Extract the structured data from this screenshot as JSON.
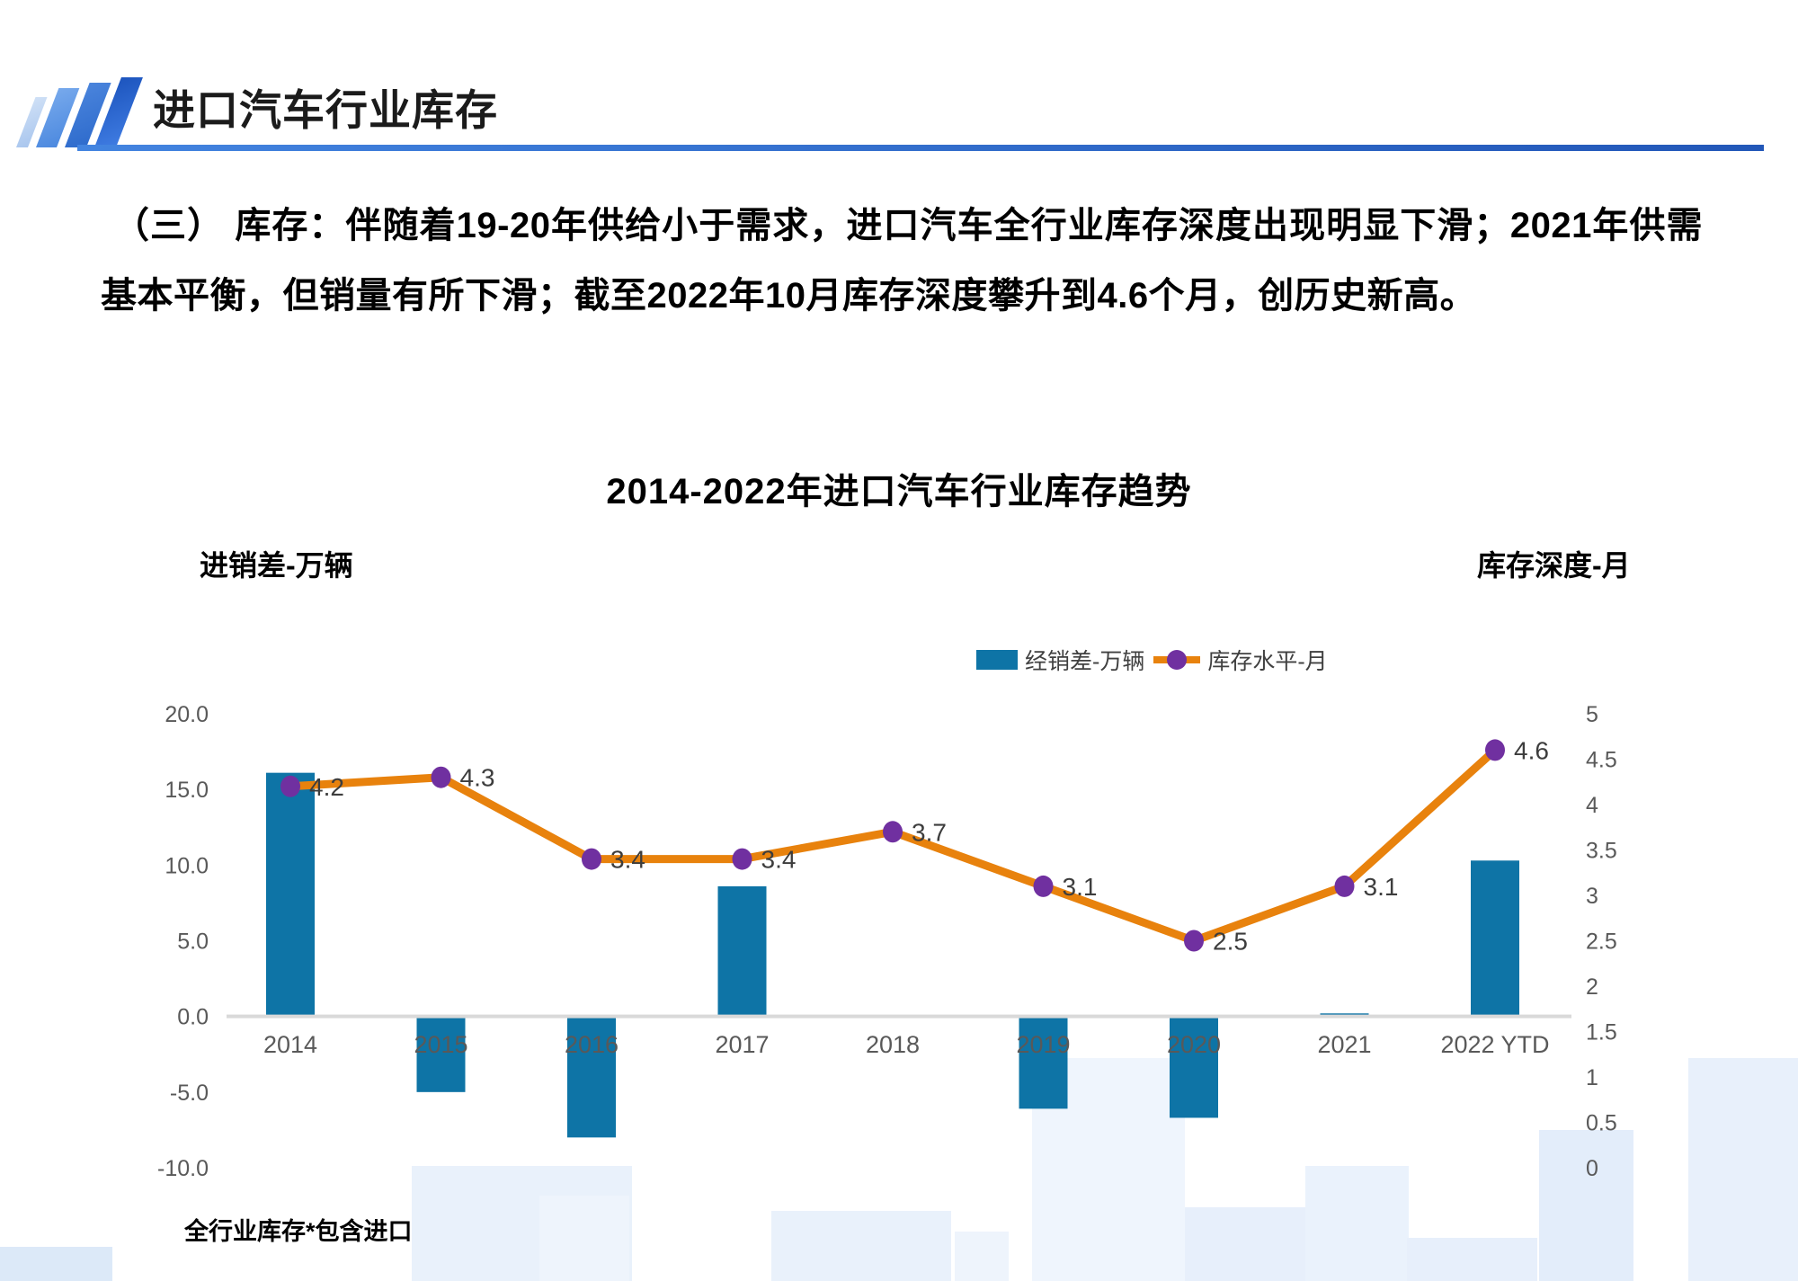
{
  "header": {
    "title": "进口汽车行业库存"
  },
  "intro": {
    "text": "（三） 库存：伴随着19-20年供给小于需求，进口汽车全行业库存深度出现明显下滑；2021年供需基本平衡，但销量有所下滑；截至2022年10月库存深度攀升到4.6个月，创历史新高。"
  },
  "chart": {
    "title": "2014-2022年进口汽车行业库存趋势",
    "left_axis_caption": "进销差-万辆",
    "right_axis_caption": "库存深度-月",
    "footnote": "全行业库存*包含进口主机厂和经销商库存"
  },
  "chart_data": {
    "type": "bar+line",
    "title": "2014-2022年进口汽车行业库存趋势",
    "categories": [
      "2014",
      "2015",
      "2016",
      "2017",
      "2018",
      "2019",
      "2020",
      "2021",
      "2022 YTD"
    ],
    "series": [
      {
        "name": "经销差-万辆",
        "type": "bar",
        "axis": "left",
        "values": [
          16.1,
          -5.0,
          -8.0,
          8.6,
          0.0,
          -6.1,
          -6.7,
          0.2,
          10.3
        ]
      },
      {
        "name": "库存水平-月",
        "type": "line",
        "axis": "right",
        "values": [
          4.2,
          4.3,
          3.4,
          3.4,
          3.7,
          3.1,
          2.5,
          3.1,
          4.6
        ],
        "labels": [
          "4.2",
          "4.3",
          "3.4",
          "3.4",
          "3.7",
          "3.1",
          "2.5",
          "3.1",
          "4.6"
        ]
      }
    ],
    "left_axis": {
      "caption": "进销差-万辆",
      "min": -10,
      "max": 20,
      "step": 5,
      "tick_labels": [
        "20.0",
        "15.0",
        "10.0",
        "5.0",
        "0.0",
        "-5.0",
        "-10.0"
      ]
    },
    "right_axis": {
      "caption": "库存深度-月",
      "min": 0,
      "max": 5,
      "step": 0.5,
      "tick_labels": [
        "5",
        "4.5",
        "4",
        "3.5",
        "3",
        "2.5",
        "2",
        "1.5",
        "1",
        "0.5",
        "0"
      ]
    },
    "legend_position": "top-center",
    "grid": "off",
    "colors": {
      "bar": "#0E74A6",
      "line": "#E8820D",
      "marker": "#7030A0",
      "axis_line": "#D9D9D9",
      "tick_text": "#595959",
      "data_label": "#3D3D3D"
    }
  }
}
